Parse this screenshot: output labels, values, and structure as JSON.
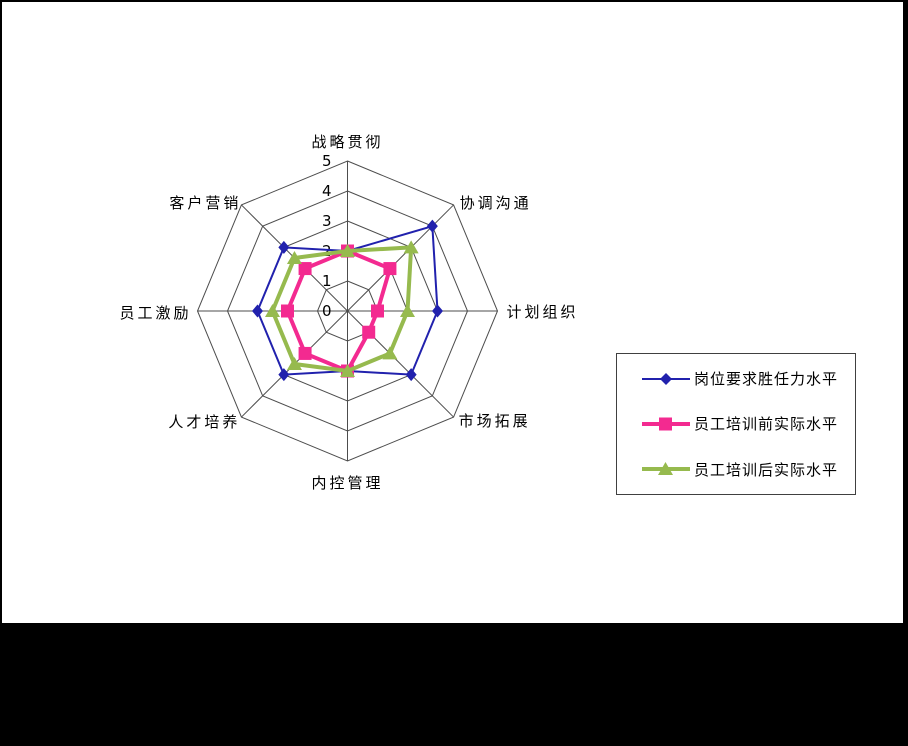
{
  "window": {
    "background": "#000000",
    "canvas_background": "#ffffff"
  },
  "chart_data": {
    "type": "radar",
    "title": "",
    "categories": [
      "战略贯彻",
      "协调沟通",
      "计划组织",
      "市场拓展",
      "内控管理",
      "人才培养",
      "员工激励",
      "客户营销"
    ],
    "axis_min": 0,
    "axis_max": 5,
    "axis_ticks": [
      "0",
      "1",
      "2",
      "3",
      "4",
      "5"
    ],
    "grid": true,
    "grid_color": "#4d4d4d",
    "legend_position": "right",
    "series": [
      {
        "name": "岗位要求胜任力水平",
        "marker": "diamond",
        "color": "#2121ad",
        "line_width": 2,
        "values": [
          2,
          4,
          3,
          3,
          2,
          3,
          3,
          3
        ]
      },
      {
        "name": "员工培训前实际水平",
        "marker": "square",
        "color": "#f32a90",
        "line_width": 4,
        "values": [
          2,
          2,
          1,
          1,
          2,
          2,
          2,
          2
        ]
      },
      {
        "name": "员工培训后实际水平",
        "marker": "triangle",
        "color": "#96ba4e",
        "line_width": 4,
        "values": [
          2,
          3,
          2,
          2,
          2,
          2.5,
          2.5,
          2.5
        ]
      }
    ]
  }
}
